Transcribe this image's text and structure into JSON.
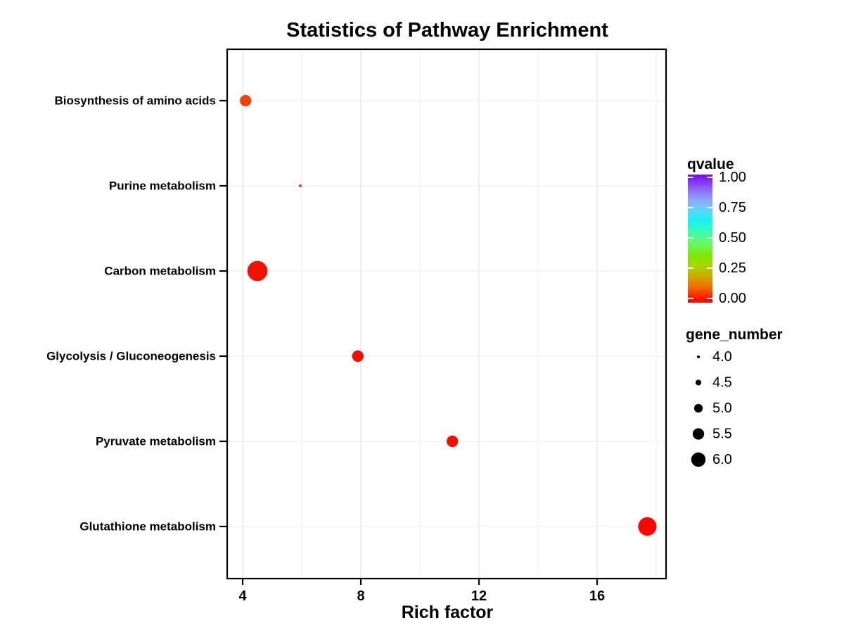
{
  "title": "Statistics of Pathway Enrichment",
  "x_axis": {
    "label": "Rich factor",
    "ticks": [
      "4",
      "8",
      "12",
      "16"
    ]
  },
  "legend": {
    "qvalue": {
      "title": "qvalue",
      "labels": [
        "1.00",
        "0.75",
        "0.50",
        "0.25",
        "0.00"
      ],
      "gradient": [
        {
          "o": 0.0,
          "c": "#7c02fd"
        },
        {
          "o": 0.1,
          "c": "#8b5cf3"
        },
        {
          "o": 0.2,
          "c": "#8fa8f6"
        },
        {
          "o": 0.28,
          "c": "#5fd6fa"
        },
        {
          "o": 0.36,
          "c": "#18f1f2"
        },
        {
          "o": 0.45,
          "c": "#3cfcae"
        },
        {
          "o": 0.54,
          "c": "#69f95f"
        },
        {
          "o": 0.63,
          "c": "#80e607"
        },
        {
          "o": 0.72,
          "c": "#aad300"
        },
        {
          "o": 0.8,
          "c": "#d4a400"
        },
        {
          "o": 0.88,
          "c": "#f26b00"
        },
        {
          "o": 0.96,
          "c": "#fe1b00"
        },
        {
          "o": 1.0,
          "c": "#ff0000"
        }
      ]
    },
    "gene_number": {
      "title": "gene_number",
      "labels": [
        "4.0",
        "4.5",
        "5.0",
        "5.5",
        "6.0"
      ],
      "sizes": [
        4.0,
        4.5,
        5.0,
        5.5,
        6.0
      ]
    }
  },
  "chart_data": {
    "type": "scatter",
    "title": "Statistics of Pathway Enrichment",
    "xlabel": "Rich factor",
    "ylabel": "",
    "x_ticks": [
      4,
      8,
      12,
      16
    ],
    "x_minor_ticks": [
      6,
      10,
      14,
      18
    ],
    "xlim": [
      3.5,
      18.3
    ],
    "grid": {
      "vertical_major": true,
      "vertical_minor": true,
      "horizontal_category": true
    },
    "legend_position": "right",
    "categories": [
      "Biosynthesis of amino acids",
      "Purine metabolism",
      "Carbon metabolism",
      "Glycolysis / Gluconeogenesis",
      "Pyruvate metabolism",
      "Glutathione metabolism"
    ],
    "points": [
      {
        "pathway": "Biosynthesis of amino acids",
        "rich_factor": 4.1,
        "gene_number": 5.5,
        "qvalue": 0.05,
        "color": "#f2420b"
      },
      {
        "pathway": "Purine metabolism",
        "rich_factor": 5.95,
        "gene_number": 4.0,
        "qvalue": 0.05,
        "color": "#ee3a00"
      },
      {
        "pathway": "Carbon metabolism",
        "rich_factor": 4.5,
        "gene_number": 7.0,
        "qvalue": 0.01,
        "color": "#f41100"
      },
      {
        "pathway": "Glycolysis / Gluconeogenesis",
        "rich_factor": 7.9,
        "gene_number": 5.5,
        "qvalue": 0.01,
        "color": "#fa0b00"
      },
      {
        "pathway": "Pyruvate metabolism",
        "rich_factor": 11.1,
        "gene_number": 5.5,
        "qvalue": 0.01,
        "color": "#fa0900"
      },
      {
        "pathway": "Glutathione metabolism",
        "rich_factor": 17.7,
        "gene_number": 6.7,
        "qvalue": 0.005,
        "color": "#fb0500"
      }
    ]
  }
}
